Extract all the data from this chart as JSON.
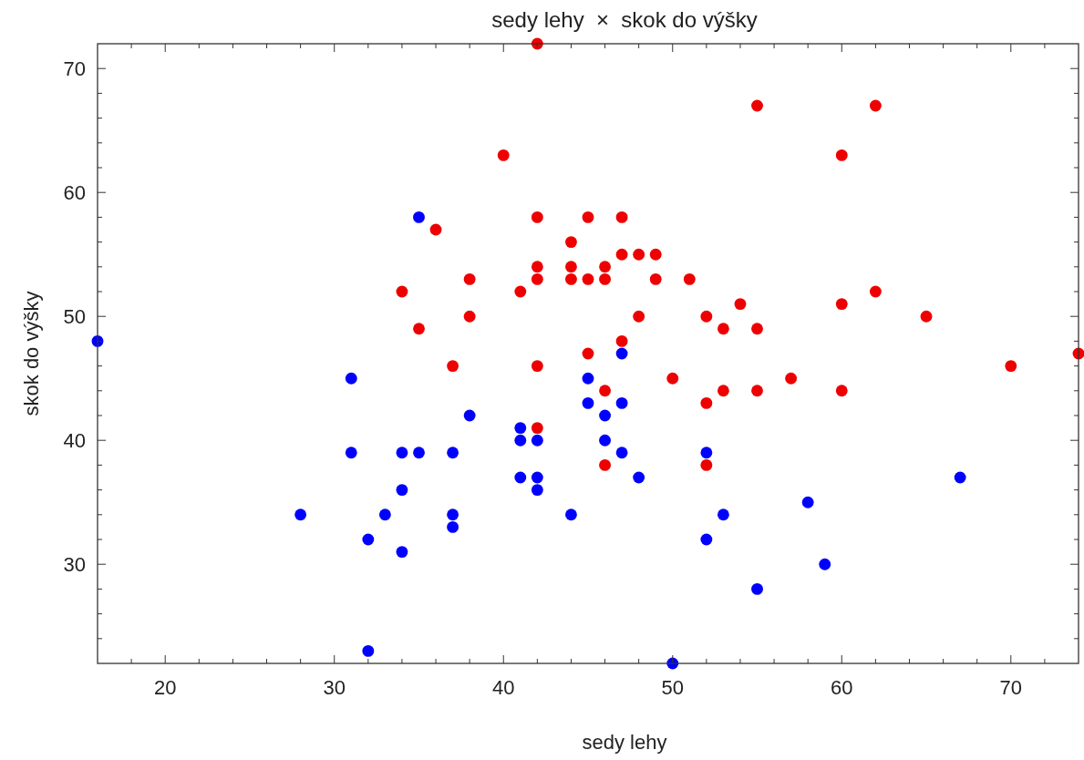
{
  "chart_data": {
    "type": "scatter",
    "title": "sedy lehy  ×  skok do výšky",
    "xlabel": "sedy lehy",
    "ylabel": "skok do výšky",
    "xlim": [
      16,
      74
    ],
    "ylim": [
      22,
      72
    ],
    "xticks": [
      {
        "value": 18,
        "label": null
      },
      20,
      {
        "value": 22,
        "label": null
      },
      {
        "value": 24,
        "label": null
      },
      {
        "value": 26,
        "label": null
      },
      {
        "value": 28,
        "label": null
      },
      30,
      {
        "value": 32,
        "label": null
      },
      {
        "value": 34,
        "label": null
      },
      {
        "value": 36,
        "label": null
      },
      {
        "value": 38,
        "label": null
      },
      40,
      {
        "value": 42,
        "label": null
      },
      {
        "value": 44,
        "label": null
      },
      {
        "value": 46,
        "label": null
      },
      {
        "value": 48,
        "label": null
      },
      50,
      {
        "value": 52,
        "label": null
      },
      {
        "value": 54,
        "label": null
      },
      {
        "value": 56,
        "label": null
      },
      {
        "value": 58,
        "label": null
      },
      60,
      {
        "value": 62,
        "label": null
      },
      {
        "value": 64,
        "label": null
      },
      {
        "value": 66,
        "label": null
      },
      {
        "value": 68,
        "label": null
      },
      70,
      {
        "value": 72,
        "label": null
      }
    ],
    "yticks": [
      {
        "value": 24,
        "label": null
      },
      {
        "value": 26,
        "label": null
      },
      {
        "value": 28,
        "label": null
      },
      30,
      {
        "value": 32,
        "label": null
      },
      {
        "value": 34,
        "label": null
      },
      {
        "value": 36,
        "label": null
      },
      {
        "value": 38,
        "label": null
      },
      40,
      {
        "value": 42,
        "label": null
      },
      {
        "value": 44,
        "label": null
      },
      {
        "value": 46,
        "label": null
      },
      {
        "value": 48,
        "label": null
      },
      50,
      {
        "value": 52,
        "label": null
      },
      {
        "value": 54,
        "label": null
      },
      {
        "value": 56,
        "label": null
      },
      {
        "value": 58,
        "label": null
      },
      60,
      {
        "value": 62,
        "label": null
      },
      {
        "value": 64,
        "label": null
      },
      {
        "value": 66,
        "label": null
      },
      {
        "value": 68,
        "label": null
      },
      70
    ],
    "marker": "circle",
    "series": [
      {
        "color": "#0000ff",
        "x": [
          16,
          31,
          31,
          28,
          32,
          32,
          33,
          34,
          34,
          34,
          35,
          35,
          37,
          37,
          37,
          38,
          41,
          41,
          41,
          42,
          42,
          42,
          44,
          45,
          45,
          46,
          46,
          47,
          47,
          47,
          48,
          50,
          52,
          52,
          53,
          55,
          58,
          59,
          67
        ],
        "values": [
          48,
          45,
          39,
          34,
          32,
          23,
          34,
          39,
          36,
          31,
          58,
          39,
          39,
          34,
          33,
          42,
          41,
          40,
          37,
          40,
          37,
          36,
          34,
          45,
          43,
          42,
          40,
          47,
          43,
          39,
          37,
          22,
          39,
          32,
          34,
          28,
          35,
          30,
          37
        ]
      },
      {
        "color": "#ee0000",
        "x": [
          34,
          35,
          36,
          37,
          38,
          38,
          40,
          41,
          42,
          42,
          42,
          42,
          42,
          42,
          44,
          44,
          44,
          45,
          45,
          45,
          46,
          46,
          46,
          46,
          47,
          47,
          47,
          48,
          48,
          49,
          49,
          50,
          51,
          52,
          52,
          52,
          53,
          53,
          54,
          55,
          55,
          55,
          57,
          60,
          60,
          60,
          62,
          62,
          65,
          70,
          74
        ],
        "values": [
          52,
          49,
          57,
          46,
          53,
          50,
          63,
          52,
          72,
          58,
          54,
          53,
          46,
          41,
          56,
          54,
          53,
          58,
          53,
          47,
          54,
          53,
          44,
          38,
          58,
          55,
          48,
          55,
          50,
          55,
          53,
          45,
          53,
          50,
          43,
          38,
          49,
          44,
          51,
          67,
          49,
          44,
          45,
          63,
          51,
          44,
          67,
          52,
          50,
          46,
          47
        ]
      }
    ]
  }
}
